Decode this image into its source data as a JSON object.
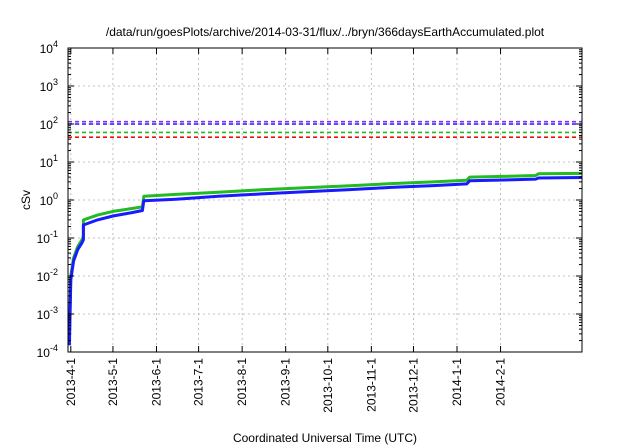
{
  "chart_data": {
    "type": "line",
    "title": "/data/run/goesPlots/archive/2014-03-31/flux/../bryn/366daysEarthAccumulated.plot",
    "xlabel": "Coordinated Universal Time (UTC)",
    "ylabel": "cSv",
    "yscale": "log",
    "ylim": [
      0.0001,
      10000
    ],
    "xlim": [
      "2013-03-30",
      "2014-03-31"
    ],
    "grid": true,
    "y_ticks": [
      {
        "value": 0.0001,
        "base": "10",
        "exp": "-4"
      },
      {
        "value": 0.001,
        "base": "10",
        "exp": "-3"
      },
      {
        "value": 0.01,
        "base": "10",
        "exp": "-2"
      },
      {
        "value": 0.1,
        "base": "10",
        "exp": "-1"
      },
      {
        "value": 1,
        "base": "10",
        "exp": "0"
      },
      {
        "value": 10,
        "base": "10",
        "exp": "1"
      },
      {
        "value": 100,
        "base": "10",
        "exp": "2"
      },
      {
        "value": 1000,
        "base": "10",
        "exp": "3"
      },
      {
        "value": 10000,
        "base": "10",
        "exp": "4"
      }
    ],
    "x_ticks": [
      {
        "date": "2013-04-01",
        "label": "2013-4-1"
      },
      {
        "date": "2013-05-01",
        "label": "2013-5-1"
      },
      {
        "date": "2013-06-01",
        "label": "2013-6-1"
      },
      {
        "date": "2013-07-01",
        "label": "2013-7-1"
      },
      {
        "date": "2013-08-01",
        "label": "2013-8-1"
      },
      {
        "date": "2013-09-01",
        "label": "2013-9-1"
      },
      {
        "date": "2013-10-01",
        "label": "2013-10-1"
      },
      {
        "date": "2013-11-01",
        "label": "2013-11-1"
      },
      {
        "date": "2013-12-01",
        "label": "2013-12-1"
      },
      {
        "date": "2014-01-01",
        "label": "2014-1-1"
      },
      {
        "date": "2014-02-01",
        "label": "2014-2-1"
      }
    ],
    "reference_lines": [
      {
        "value": 115,
        "color": "#8a2be2"
      },
      {
        "value": 100,
        "color": "#1a1aff"
      },
      {
        "value": 60,
        "color": "#22bb22"
      },
      {
        "value": 45,
        "color": "#ee1111"
      }
    ],
    "series": [
      {
        "color": "#22bb22",
        "points": [
          {
            "x": "2013-03-31",
            "y": 0.0002
          },
          {
            "x": "2013-04-01",
            "y": 0.01
          },
          {
            "x": "2013-04-03",
            "y": 0.03
          },
          {
            "x": "2013-04-06",
            "y": 0.06
          },
          {
            "x": "2013-04-09",
            "y": 0.09
          },
          {
            "x": "2013-04-10",
            "y": 0.11
          },
          {
            "x": "2013-04-10",
            "y": 0.3
          },
          {
            "x": "2013-04-20",
            "y": 0.4
          },
          {
            "x": "2013-05-01",
            "y": 0.5
          },
          {
            "x": "2013-05-15",
            "y": 0.6
          },
          {
            "x": "2013-05-22",
            "y": 0.66
          },
          {
            "x": "2013-05-23",
            "y": 1.25
          },
          {
            "x": "2013-06-15",
            "y": 1.4
          },
          {
            "x": "2013-07-15",
            "y": 1.6
          },
          {
            "x": "2013-08-15",
            "y": 1.85
          },
          {
            "x": "2013-09-15",
            "y": 2.1
          },
          {
            "x": "2013-10-15",
            "y": 2.35
          },
          {
            "x": "2013-11-15",
            "y": 2.7
          },
          {
            "x": "2013-12-15",
            "y": 3.0
          },
          {
            "x": "2014-01-08",
            "y": 3.3
          },
          {
            "x": "2014-01-10",
            "y": 4.0
          },
          {
            "x": "2014-02-10",
            "y": 4.25
          },
          {
            "x": "2014-02-26",
            "y": 4.4
          },
          {
            "x": "2014-02-28",
            "y": 4.9
          },
          {
            "x": "2014-03-31",
            "y": 5.0
          }
        ]
      },
      {
        "color": "#1a1aff",
        "points": [
          {
            "x": "2013-03-31",
            "y": 0.00015
          },
          {
            "x": "2013-04-01",
            "y": 0.008
          },
          {
            "x": "2013-04-03",
            "y": 0.025
          },
          {
            "x": "2013-04-06",
            "y": 0.05
          },
          {
            "x": "2013-04-09",
            "y": 0.075
          },
          {
            "x": "2013-04-10",
            "y": 0.09
          },
          {
            "x": "2013-04-10",
            "y": 0.22
          },
          {
            "x": "2013-04-20",
            "y": 0.3
          },
          {
            "x": "2013-05-01",
            "y": 0.38
          },
          {
            "x": "2013-05-15",
            "y": 0.47
          },
          {
            "x": "2013-05-22",
            "y": 0.53
          },
          {
            "x": "2013-05-23",
            "y": 0.95
          },
          {
            "x": "2013-06-15",
            "y": 1.05
          },
          {
            "x": "2013-07-15",
            "y": 1.25
          },
          {
            "x": "2013-08-15",
            "y": 1.45
          },
          {
            "x": "2013-09-15",
            "y": 1.65
          },
          {
            "x": "2013-10-15",
            "y": 1.85
          },
          {
            "x": "2013-11-15",
            "y": 2.15
          },
          {
            "x": "2013-12-15",
            "y": 2.4
          },
          {
            "x": "2014-01-08",
            "y": 2.65
          },
          {
            "x": "2014-01-10",
            "y": 3.2
          },
          {
            "x": "2014-02-10",
            "y": 3.4
          },
          {
            "x": "2014-02-26",
            "y": 3.55
          },
          {
            "x": "2014-02-28",
            "y": 3.8
          },
          {
            "x": "2014-03-31",
            "y": 3.9
          }
        ]
      }
    ]
  }
}
